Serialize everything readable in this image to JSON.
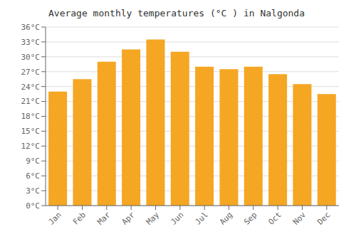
{
  "chart_data": {
    "type": "bar",
    "title": "Average monthly temperatures (°C ) in Nalgonda",
    "categories": [
      "Jan",
      "Feb",
      "Mar",
      "Apr",
      "May",
      "Jun",
      "Jul",
      "Aug",
      "Sep",
      "Oct",
      "Nov",
      "Dec"
    ],
    "values": [
      23.0,
      25.5,
      29.0,
      31.5,
      33.5,
      31.0,
      28.0,
      27.5,
      28.0,
      26.5,
      24.5,
      22.5
    ],
    "color": "#F5A623",
    "ylim": [
      0,
      36
    ],
    "yticks": [
      {
        "value": 0,
        "label": "0°C"
      },
      {
        "value": 3,
        "label": "3°C"
      },
      {
        "value": 6,
        "label": "6°C"
      },
      {
        "value": 9,
        "label": "9°C"
      },
      {
        "value": 12,
        "label": "12°C"
      },
      {
        "value": 15,
        "label": "15°C"
      },
      {
        "value": 18,
        "label": "18°C"
      },
      {
        "value": 21,
        "label": "21°C"
      },
      {
        "value": 24,
        "label": "24°C"
      },
      {
        "value": 27,
        "label": "27°C"
      },
      {
        "value": 30,
        "label": "30°C"
      },
      {
        "value": 33,
        "label": "33°C"
      },
      {
        "value": 36,
        "label": "36°C"
      }
    ],
    "grid": true
  }
}
